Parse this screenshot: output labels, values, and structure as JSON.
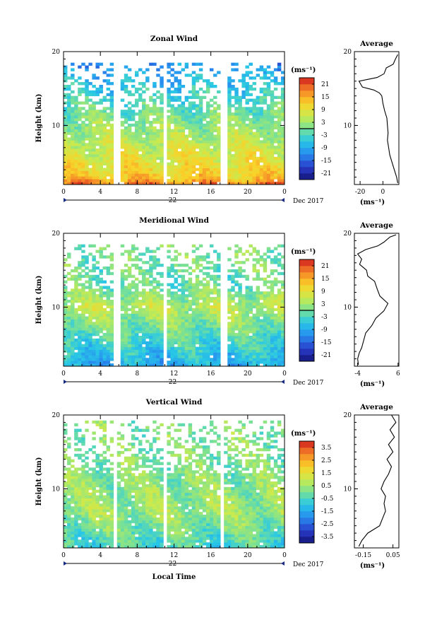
{
  "chart_data": [
    {
      "type": "heatmap",
      "title": "Zonal Wind",
      "ylabel": "Height (km)",
      "ylim": [
        2,
        20
      ],
      "y_ticks": [
        "20",
        "10"
      ],
      "x_ticks": [
        "0",
        "4",
        "8",
        "12",
        "16",
        "20",
        "0"
      ],
      "xlim": [
        0,
        24
      ],
      "date_day": "22",
      "date_label": "Dec 2017",
      "colorbar": {
        "unit": "(ms⁻¹)",
        "ticks": [
          "21",
          "15",
          "9",
          "3",
          "-3",
          "-9",
          "-15",
          "-21"
        ],
        "range": [
          -24,
          24
        ],
        "zero_line": true
      },
      "field": {
        "base": 3,
        "surface_value": 19,
        "peak_value": 12,
        "peak_height": 3,
        "upper_value": -2,
        "top_value": -14,
        "max_height": 18.5
      },
      "gaps": [
        [
          5.5,
          6.0
        ],
        [
          10.8,
          11.3
        ],
        [
          17.2,
          17.8
        ]
      ],
      "profile": {
        "title": "Average",
        "xlabel": "(ms⁻¹)",
        "x_ticks": [
          "-20",
          "0"
        ],
        "x_tick_values": [
          -20,
          0
        ],
        "xlim": [
          -25,
          14
        ],
        "points": [
          [
            13,
            2.2
          ],
          [
            12,
            3
          ],
          [
            10,
            4
          ],
          [
            8,
            5
          ],
          [
            6,
            6
          ],
          [
            5,
            7
          ],
          [
            4,
            8
          ],
          [
            4.5,
            9
          ],
          [
            4,
            10
          ],
          [
            3.5,
            11
          ],
          [
            1.5,
            12
          ],
          [
            0,
            13
          ],
          [
            -1,
            14
          ],
          [
            -3,
            14.4
          ],
          [
            -8,
            14.8
          ],
          [
            -18,
            15.2
          ],
          [
            -21,
            16
          ],
          [
            -5,
            16.5
          ],
          [
            1,
            17
          ],
          [
            3,
            17.8
          ],
          [
            9,
            18.3
          ],
          [
            11,
            19
          ],
          [
            13,
            19.6
          ]
        ]
      }
    },
    {
      "type": "heatmap",
      "title": "Meridional Wind",
      "ylabel": "Height (km)",
      "ylim": [
        2,
        20
      ],
      "y_ticks": [
        "20",
        "10"
      ],
      "x_ticks": [
        "0",
        "4",
        "8",
        "12",
        "16",
        "20",
        "0"
      ],
      "xlim": [
        0,
        24
      ],
      "date_day": "22",
      "date_label": "Dec 2017",
      "colorbar": {
        "unit": "(ms⁻¹)",
        "ticks": [
          "21",
          "15",
          "9",
          "3",
          "-3",
          "-9",
          "-15",
          "-21"
        ],
        "range": [
          -24,
          24
        ],
        "zero_line": true
      },
      "field": {
        "base": -2,
        "surface_value": -9,
        "peak_value": 5,
        "peak_height": 10,
        "upper_value": -1,
        "top_value": 2,
        "max_height": 18.5
      },
      "gaps": [
        [
          5.5,
          6.0
        ],
        [
          10.8,
          11.3
        ],
        [
          17.2,
          17.8
        ]
      ],
      "profile": {
        "title": "Average",
        "xlabel": "(ms⁻¹)",
        "x_ticks": [
          "-4",
          "6"
        ],
        "x_tick_values": [
          -4,
          6
        ],
        "xlim": [
          -4.8,
          6.2
        ],
        "points": [
          [
            -3.8,
            2.2
          ],
          [
            -4,
            3
          ],
          [
            -3.6,
            3.8
          ],
          [
            -3,
            4.5
          ],
          [
            -2.5,
            5.5
          ],
          [
            -2,
            6.5
          ],
          [
            -0.5,
            7.5
          ],
          [
            0.5,
            8.5
          ],
          [
            2.5,
            9.5
          ],
          [
            3.5,
            10.5
          ],
          [
            1.5,
            11.5
          ],
          [
            0.8,
            12.5
          ],
          [
            0.2,
            13.5
          ],
          [
            -1.5,
            14.2
          ],
          [
            -1.8,
            15
          ],
          [
            -3.5,
            15.8
          ],
          [
            -3,
            16.5
          ],
          [
            -4,
            17.2
          ],
          [
            -2,
            17.8
          ],
          [
            1,
            18.3
          ],
          [
            2.5,
            18.8
          ],
          [
            4,
            19.5
          ],
          [
            5.5,
            19.8
          ]
        ]
      }
    },
    {
      "type": "heatmap",
      "title": "Vertical Wind",
      "ylabel": "Height (km)",
      "xlabel": "Local Time",
      "ylim": [
        2,
        20
      ],
      "y_ticks": [
        "20",
        "10"
      ],
      "x_ticks": [
        "0",
        "4",
        "8",
        "12",
        "16",
        "20",
        "0"
      ],
      "xlim": [
        0,
        24
      ],
      "date_day": "22",
      "date_label": "Dec 2017",
      "colorbar": {
        "unit": "(ms⁻¹)",
        "ticks": [
          "3.5",
          "2.5",
          "1.5",
          "0.5",
          "-0.5",
          "-1.5",
          "-2.5",
          "-3.5"
        ],
        "range": [
          -4,
          4
        ],
        "zero_line": false
      },
      "field": {
        "base": 0.2,
        "surface_value": -0.6,
        "peak_value": 0.5,
        "peak_height": 7,
        "upper_value": 0.1,
        "top_value": 0.2,
        "max_height": 19.2
      },
      "gaps": [
        [
          5.3,
          5.8
        ],
        [
          10.8,
          11.2
        ],
        [
          17.0,
          17.6
        ]
      ],
      "profile": {
        "title": "Average",
        "xlabel": "(ms⁻¹)",
        "x_ticks": [
          "-0.15",
          "0.05"
        ],
        "x_tick_values": [
          -0.15,
          0.05
        ],
        "xlim": [
          -0.21,
          0.09
        ],
        "points": [
          [
            -0.18,
            2.2
          ],
          [
            -0.16,
            3
          ],
          [
            -0.12,
            4
          ],
          [
            -0.04,
            5
          ],
          [
            -0.02,
            6
          ],
          [
            0.0,
            7
          ],
          [
            -0.01,
            8
          ],
          [
            0.0,
            9
          ],
          [
            -0.03,
            10
          ],
          [
            -0.01,
            11
          ],
          [
            0.02,
            12
          ],
          [
            0.04,
            13
          ],
          [
            0.01,
            14
          ],
          [
            0.05,
            15
          ],
          [
            0.02,
            16
          ],
          [
            0.06,
            17
          ],
          [
            0.03,
            18
          ],
          [
            0.07,
            19
          ],
          [
            0.04,
            20
          ]
        ]
      }
    }
  ]
}
